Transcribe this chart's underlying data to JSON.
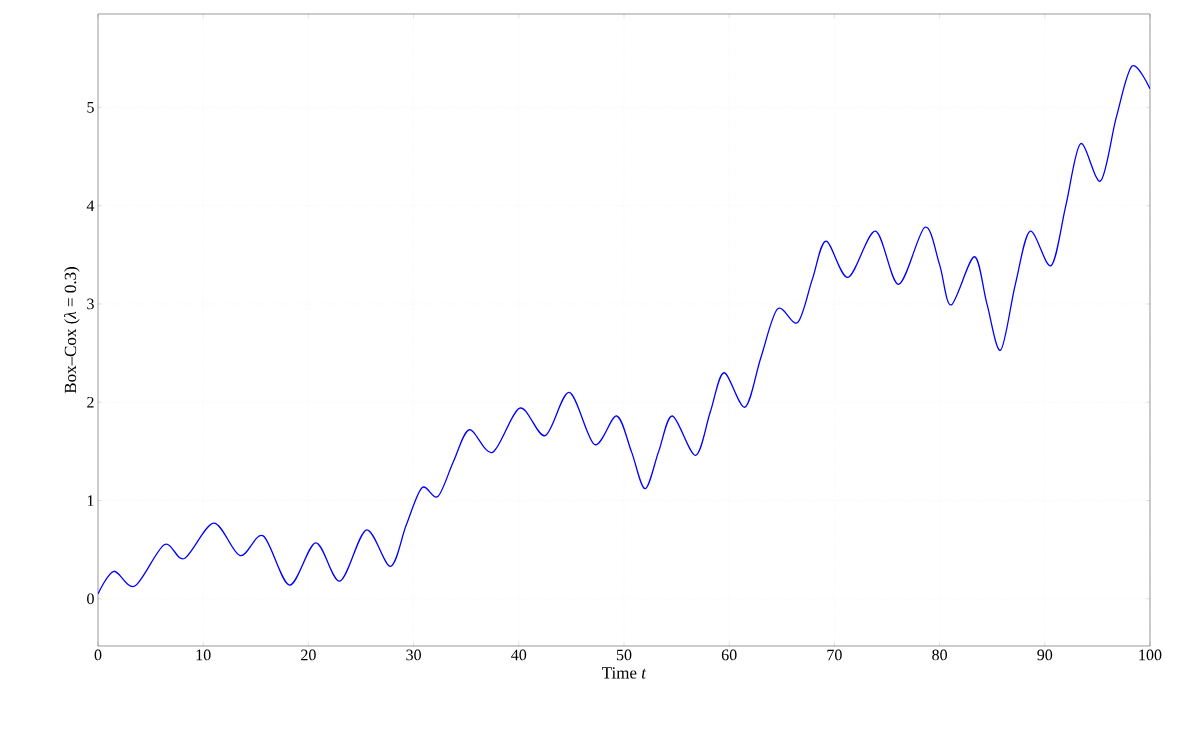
{
  "chart_data": {
    "type": "line",
    "xlabel": "Time *t*",
    "ylabel": "Box–Cox (*λ* = 0.3)",
    "xlim": [
      0,
      100
    ],
    "ylim": [
      -0.48,
      5.95
    ],
    "xticks": [
      0,
      10,
      20,
      30,
      40,
      50,
      60,
      70,
      80,
      90,
      100
    ],
    "yticks": [
      0,
      1,
      2,
      3,
      4,
      5
    ],
    "grid": true,
    "series": [
      {
        "color": "#0000ff",
        "x": [
          0,
          1.5,
          3.5,
          6.3,
          8.2,
          11,
          13.5,
          15.7,
          18.2,
          20.7,
          23,
          25.5,
          27.8,
          29.3,
          30.8,
          32.3,
          33.8,
          35.3,
          37.5,
          40.1,
          42.5,
          44.8,
          47.2,
          49.3,
          50.7,
          52,
          53.3,
          54.6,
          56.8,
          58.2,
          59.5,
          61.5,
          63,
          64.6,
          66.5,
          67.9,
          69.2,
          71.3,
          73.9,
          76.1,
          78.6,
          80,
          81.1,
          83.3,
          84.5,
          85.8,
          87.2,
          88.6,
          90.6,
          92,
          93.4,
          95.3,
          96.8,
          98.3,
          100
        ],
        "values": [
          0.05,
          0.28,
          0.13,
          0.55,
          0.41,
          0.77,
          0.44,
          0.64,
          0.14,
          0.57,
          0.18,
          0.7,
          0.33,
          0.75,
          1.13,
          1.04,
          1.4,
          1.72,
          1.49,
          1.94,
          1.66,
          2.1,
          1.57,
          1.86,
          1.5,
          1.12,
          1.5,
          1.86,
          1.46,
          1.9,
          2.3,
          1.95,
          2.45,
          2.95,
          2.81,
          3.25,
          3.64,
          3.27,
          3.74,
          3.2,
          3.78,
          3.4,
          2.99,
          3.48,
          3.0,
          2.53,
          3.2,
          3.74,
          3.39,
          4.0,
          4.63,
          4.25,
          4.9,
          5.42,
          5.19
        ]
      }
    ]
  }
}
